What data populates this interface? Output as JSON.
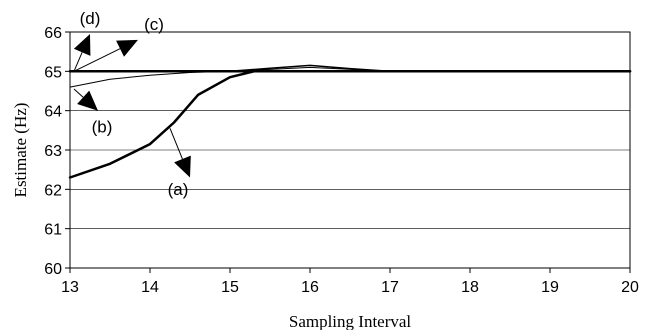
{
  "chart_data": {
    "type": "line",
    "xlabel": "Sampling Interval",
    "ylabel": "Estimate (Hz)",
    "xlim": [
      13,
      20
    ],
    "ylim": [
      60,
      66
    ],
    "xticks": [
      13,
      14,
      15,
      16,
      17,
      18,
      19,
      20
    ],
    "yticks": [
      60,
      61,
      62,
      63,
      64,
      65,
      66
    ],
    "grid": "horizontal",
    "series": [
      {
        "name": "(a)",
        "x": [
          13,
          13.5,
          14,
          14.3,
          14.6,
          15,
          15.3,
          15.6,
          16,
          16.3,
          16.6,
          17,
          18,
          19,
          20
        ],
        "y": [
          62.3,
          62.65,
          63.15,
          63.7,
          64.4,
          64.85,
          65.0,
          65.0,
          65.0,
          65.0,
          65.0,
          65.0,
          65.0,
          65.0,
          65.0
        ],
        "stroke": 2.5
      },
      {
        "name": "(b)",
        "x": [
          13,
          13.5,
          14,
          14.5,
          15,
          15.5,
          16,
          17,
          18,
          19,
          20
        ],
        "y": [
          64.6,
          64.8,
          64.9,
          64.97,
          65.0,
          65.05,
          65.1,
          65.0,
          65.0,
          65.0,
          65.0
        ],
        "stroke": 1
      },
      {
        "name": "(c)",
        "x": [
          13,
          14,
          15,
          15.5,
          16,
          16.5,
          17,
          18,
          19,
          20
        ],
        "y": [
          65.0,
          65.0,
          65.0,
          65.08,
          65.15,
          65.07,
          65.0,
          65.0,
          65.0,
          65.0
        ],
        "stroke": 1.5
      },
      {
        "name": "(d)",
        "x": [
          13,
          14,
          15,
          16,
          17,
          18,
          19,
          20
        ],
        "y": [
          65.0,
          65.0,
          65.0,
          65.0,
          65.0,
          65.0,
          65.0,
          65.0
        ],
        "stroke": 2.5
      }
    ],
    "annotations": [
      {
        "label": "(a)",
        "point": [
          14.25,
          63.55
        ],
        "tip": [
          14.5,
          62.3
        ],
        "text_at": [
          14.35,
          61.85
        ]
      },
      {
        "label": "(b)",
        "point": [
          13.05,
          64.55
        ],
        "tip": [
          13.35,
          64.0
        ],
        "text_at": [
          13.4,
          63.45
        ]
      },
      {
        "label": "(c)",
        "point": [
          13.05,
          65.0
        ],
        "tip": [
          13.85,
          65.8
        ],
        "text_at": [
          14.05,
          66.05
        ]
      },
      {
        "label": "(d)",
        "point": [
          13.05,
          65.0
        ],
        "tip": [
          13.25,
          65.95
        ],
        "text_at": [
          13.25,
          66.2
        ]
      }
    ]
  }
}
